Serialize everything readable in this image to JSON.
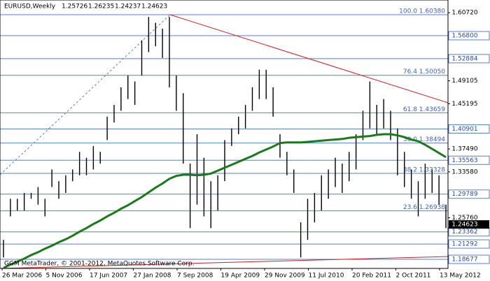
{
  "header": {
    "symbol": "EURUSD,Weekly",
    "open": "1.25726",
    "high": "1.26235",
    "low": "1.24237",
    "close": "1.24623"
  },
  "footer": "GGM MetaTrader, © 2001-2012, MetaQuotes Software Corp.",
  "chart_data": {
    "type": "ohlc",
    "ylim": [
      1.1713,
      1.6288
    ],
    "highs": [
      1.22,
      1.29,
      1.29,
      1.3,
      1.3,
      1.31,
      1.29,
      1.34,
      1.32,
      1.33,
      1.34,
      1.37,
      1.36,
      1.38,
      1.37,
      1.43,
      1.45,
      1.48,
      1.5,
      1.49,
      1.56,
      1.6,
      1.59,
      1.58,
      1.6,
      1.5,
      1.47,
      1.35,
      1.4,
      1.36,
      1.32,
      1.33,
      1.39,
      1.41,
      1.43,
      1.45,
      1.48,
      1.51,
      1.51,
      1.48,
      1.4,
      1.37,
      1.34,
      1.25,
      1.29,
      1.3,
      1.33,
      1.34,
      1.36,
      1.35,
      1.37,
      1.4,
      1.44,
      1.49,
      1.45,
      1.46,
      1.44,
      1.41,
      1.37,
      1.34,
      1.32,
      1.35,
      1.34,
      1.33,
      1.28
    ],
    "lows": [
      1.19,
      1.26,
      1.27,
      1.27,
      1.29,
      1.28,
      1.26,
      1.31,
      1.29,
      1.3,
      1.32,
      1.33,
      1.33,
      1.34,
      1.35,
      1.39,
      1.42,
      1.44,
      1.46,
      1.45,
      1.5,
      1.54,
      1.55,
      1.53,
      1.48,
      1.44,
      1.35,
      1.24,
      1.28,
      1.26,
      1.24,
      1.27,
      1.32,
      1.38,
      1.4,
      1.41,
      1.44,
      1.46,
      1.46,
      1.43,
      1.36,
      1.33,
      1.3,
      1.19,
      1.22,
      1.25,
      1.27,
      1.29,
      1.31,
      1.3,
      1.32,
      1.34,
      1.39,
      1.41,
      1.4,
      1.41,
      1.39,
      1.33,
      1.31,
      1.29,
      1.26,
      1.29,
      1.3,
      1.28,
      1.24
    ],
    "ma": [
      1.172,
      1.178,
      1.183,
      1.188,
      1.194,
      1.199,
      1.205,
      1.21,
      1.216,
      1.221,
      1.227,
      1.234,
      1.24,
      1.247,
      1.253,
      1.26,
      1.266,
      1.273,
      1.279,
      1.286,
      1.293,
      1.301,
      1.309,
      1.316,
      1.324,
      1.329,
      1.331,
      1.331,
      1.33,
      1.331,
      1.333,
      1.338,
      1.343,
      1.348,
      1.353,
      1.358,
      1.363,
      1.369,
      1.374,
      1.379,
      1.385,
      1.386,
      1.386,
      1.386,
      1.387,
      1.388,
      1.389,
      1.39,
      1.391,
      1.392,
      1.394,
      1.395,
      1.396,
      1.397,
      1.399,
      1.4,
      1.4,
      1.398,
      1.395,
      1.391,
      1.388,
      1.382,
      1.375,
      1.368,
      1.361
    ],
    "bar_color": "#000000",
    "ma_color": "#1a7a1a",
    "level_color": "#5b7fc4",
    "categories": [
      "26 Mar 2006",
      "5 Nov 2006",
      "17 Jun 2007",
      "27 Jan 2008",
      "7 Sep 2008",
      "19 Apr 2009",
      "29 Nov 2009",
      "11 Jul 2010",
      "20 Feb 2011",
      "2 Oct 2011",
      "13 May 2012"
    ],
    "yticks": [
      {
        "value": 1.6072,
        "label": "1.60720"
      },
      {
        "value": 1.49105,
        "label": "1.49105"
      },
      {
        "value": 1.45195,
        "label": "1.45195"
      },
      {
        "value": 1.3749,
        "label": "1.37490"
      },
      {
        "value": 1.3358,
        "label": "1.33580"
      },
      {
        "value": 1.2576,
        "label": "1.25760"
      }
    ],
    "levels": [
      {
        "value": 1.568,
        "label": "1.56800"
      },
      {
        "value": 1.52884,
        "label": "1.52884"
      },
      {
        "value": 1.40901,
        "label": "1.40901"
      },
      {
        "value": 1.35563,
        "label": "1.35563"
      },
      {
        "value": 1.29789,
        "label": "1.29789"
      },
      {
        "value": 1.23362,
        "label": "1.23362"
      },
      {
        "value": 1.21292,
        "label": "1.21292"
      },
      {
        "value": 1.18677,
        "label": "1.18677"
      }
    ],
    "current": {
      "value": 1.24623,
      "label": "1.24623"
    },
    "fib_levels": [
      {
        "value": 1.6038,
        "label": "100.0 1.60380"
      },
      {
        "value": 1.5005,
        "label": "76.4 1.50050"
      },
      {
        "value": 1.43659,
        "label": "61.8 1.43659"
      },
      {
        "value": 1.38494,
        "label": "50.0 1.38494"
      },
      {
        "value": 1.33328,
        "label": "38.2 1.33328"
      },
      {
        "value": 1.26938,
        "label": "23.6 1.26938"
      }
    ]
  }
}
